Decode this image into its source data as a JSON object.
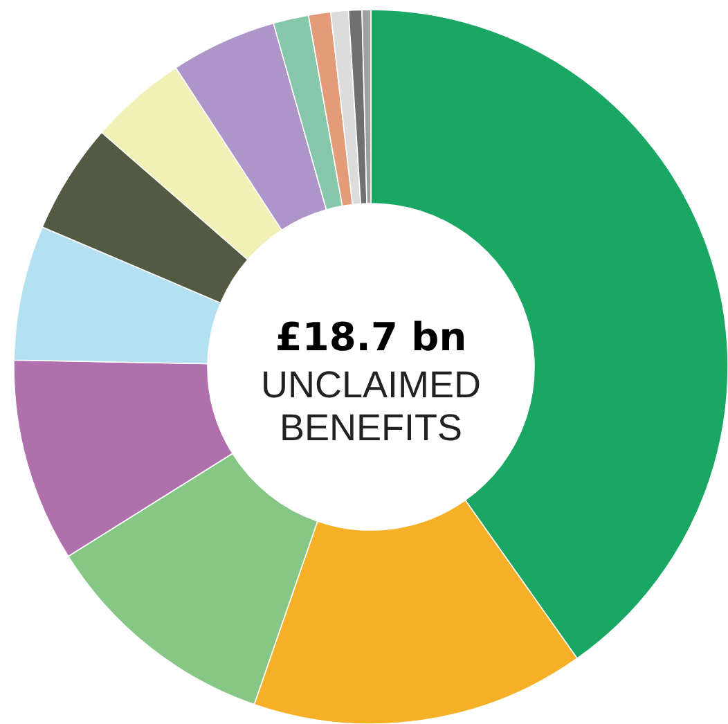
{
  "chart_data": {
    "type": "donut",
    "title": "£18.7 bn",
    "subtitle": "UNCLAIMED BENEFITS",
    "categories": [
      null,
      null,
      null,
      null,
      null,
      null,
      null,
      null,
      null,
      null,
      null,
      null,
      null
    ],
    "values": [
      40.2,
      15.1,
      10.8,
      9.2,
      6.1,
      5.0,
      4.4,
      4.8,
      1.6,
      1.0,
      0.8,
      0.6,
      0.4
    ],
    "colors": [
      "#1aa764",
      "#f5b027",
      "#86c786",
      "#b070ae",
      "#b3e1f2",
      "#525a41",
      "#f2f0b6",
      "#ad95c9",
      "#86c7aa",
      "#e39b7a",
      "#dcdcdc",
      "#707070",
      "#a0a0a0"
    ]
  }
}
